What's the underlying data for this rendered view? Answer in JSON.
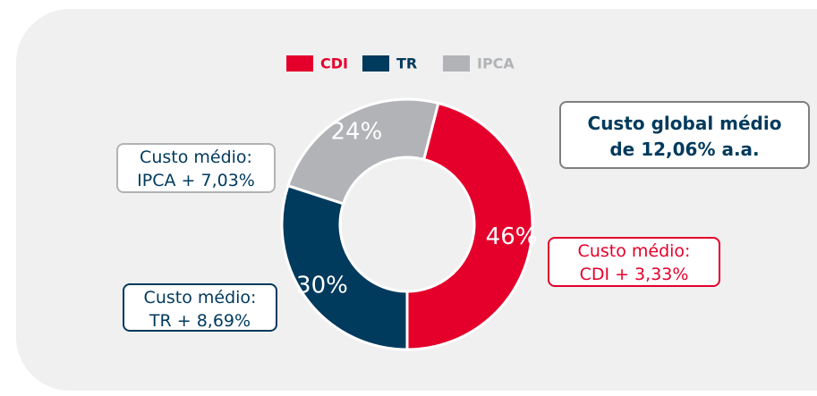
{
  "chart_data": {
    "type": "donut",
    "categories": [
      "CDI",
      "TR",
      "IPCA"
    ],
    "values": [
      46,
      30,
      24
    ],
    "value_labels": [
      "46%",
      "30%",
      "24%"
    ],
    "colors": [
      "#e4002b",
      "#003a5d",
      "#b1b3b6"
    ],
    "legend": "top",
    "annotations": [
      {
        "lines": [
          "Custo médio:",
          "CDI + 3,33%"
        ],
        "color": "#e4002b"
      },
      {
        "lines": [
          "Custo médio:",
          "TR + 8,69%"
        ],
        "color": "#003a5d"
      },
      {
        "lines": [
          "Custo médio:",
          "IPCA + 7,03%"
        ],
        "color": "#b1b3b6"
      },
      {
        "lines": [
          "Custo global médio",
          "de 12,06% a.a."
        ],
        "color": "#003a5d"
      }
    ]
  }
}
